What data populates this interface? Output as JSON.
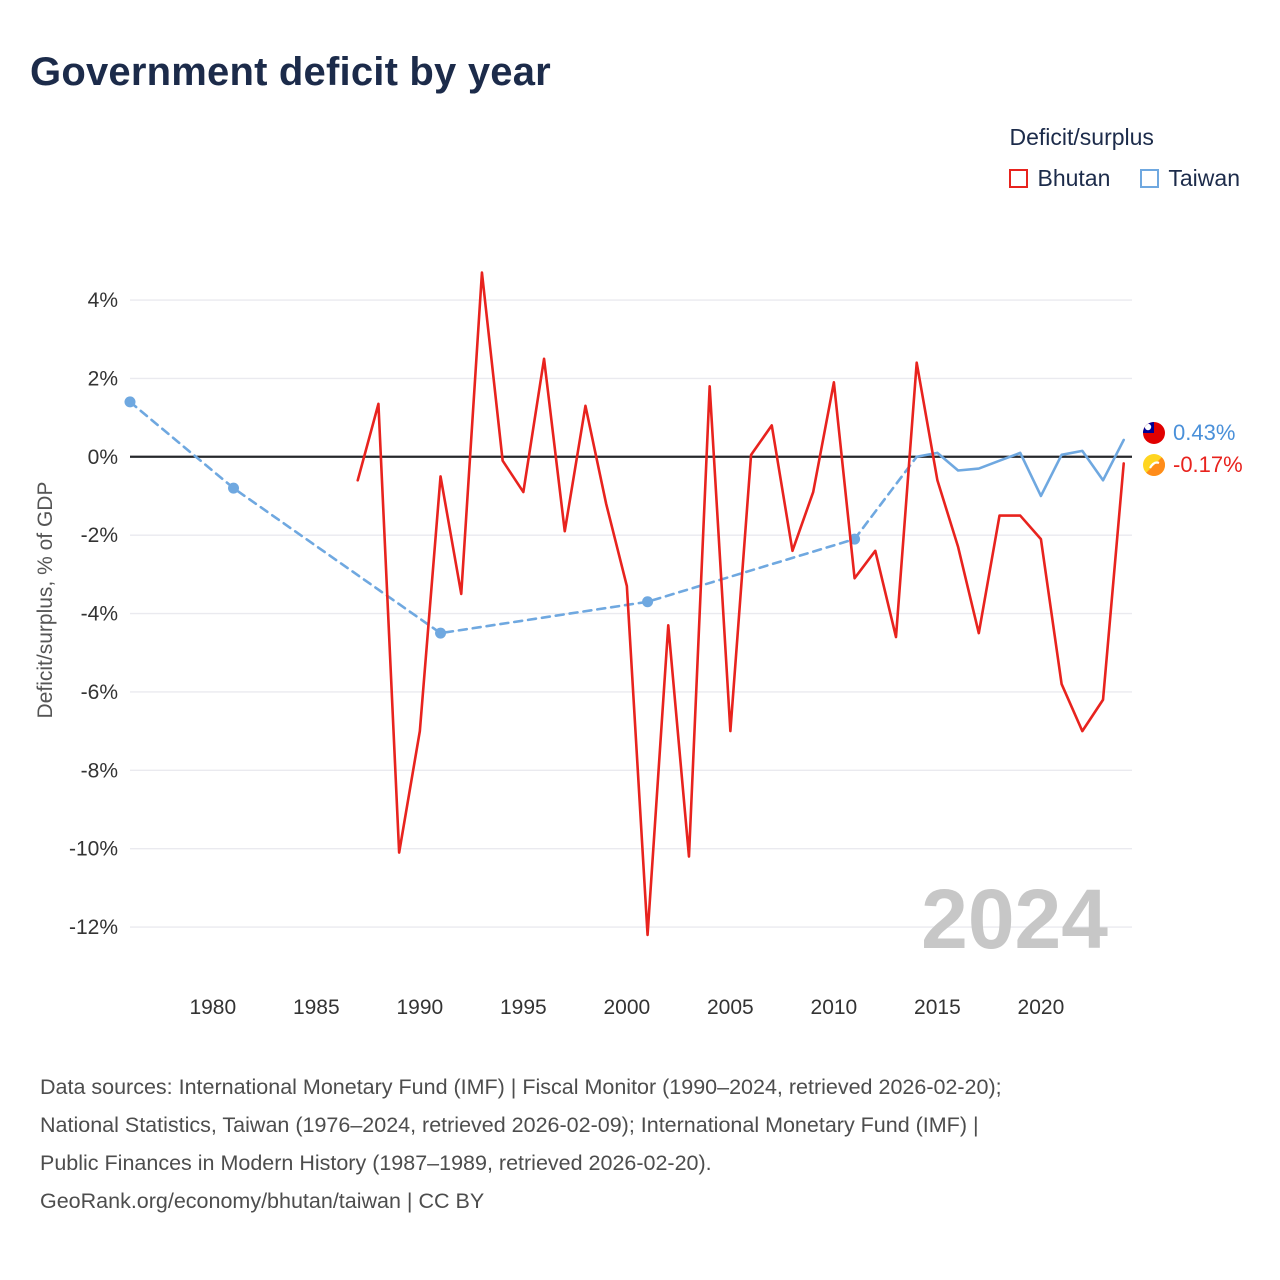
{
  "page": {
    "title": "Government deficit by year",
    "watermark": "2024"
  },
  "legend": {
    "title": "Deficit/surplus",
    "items": [
      {
        "label": "Bhutan",
        "color": "#e8231e"
      },
      {
        "label": "Taiwan",
        "color": "#6fa8e0"
      }
    ]
  },
  "axes": {
    "y_label": "Deficit/surplus, % of GDP"
  },
  "chart_data": {
    "type": "line",
    "title": "Government deficit by year",
    "xlabel": "",
    "ylabel": "Deficit/surplus, % of GDP",
    "xlim": [
      1976,
      2024.4
    ],
    "ylim": [
      -13.3,
      5.2
    ],
    "grid": true,
    "zero_line": true,
    "legend_position": "top-right",
    "x_ticks": [
      1980,
      1985,
      1990,
      1995,
      2000,
      2005,
      2010,
      2015,
      2020
    ],
    "y_ticks": [
      4,
      2,
      0,
      -2,
      -4,
      -6,
      -8,
      -10,
      -12
    ],
    "y_tick_suffix": "%",
    "series": [
      {
        "name": "Taiwan",
        "color": "#6fa8e0",
        "end_value_label": "0.43%",
        "segments": [
          {
            "style": "dashed",
            "markers": true,
            "x": [
              1976,
              1981,
              1991,
              2001,
              2011
            ],
            "y": [
              1.4,
              -0.8,
              -4.5,
              -3.7,
              -2.1
            ]
          },
          {
            "style": "dashed",
            "markers": false,
            "x": [
              2011,
              2014
            ],
            "y": [
              -2.1,
              0.0
            ]
          },
          {
            "style": "solid",
            "markers": false,
            "x": [
              2014,
              2015,
              2016,
              2017,
              2018,
              2019,
              2020,
              2021,
              2022,
              2023,
              2024
            ],
            "y": [
              0.0,
              0.1,
              -0.35,
              -0.3,
              -0.1,
              0.1,
              -1.0,
              0.05,
              0.15,
              -0.6,
              0.43
            ]
          }
        ]
      },
      {
        "name": "Bhutan",
        "color": "#e8231e",
        "end_value_label": "-0.17%",
        "segments": [
          {
            "style": "solid",
            "markers": false,
            "x": [
              1987,
              1988,
              1989,
              1990,
              1991,
              1992,
              1993,
              1994,
              1995,
              1996,
              1997,
              1998,
              1999,
              2000,
              2001,
              2002,
              2003,
              2004,
              2005,
              2006,
              2007,
              2008,
              2009,
              2010,
              2011,
              2012,
              2013,
              2014,
              2015,
              2016,
              2017,
              2018,
              2019,
              2020,
              2021,
              2022,
              2023,
              2024
            ],
            "y": [
              -0.6,
              1.35,
              -10.1,
              -7.0,
              -0.5,
              -3.5,
              4.7,
              -0.1,
              -0.9,
              2.5,
              -1.9,
              1.3,
              -1.2,
              -3.3,
              -12.2,
              -4.3,
              -10.2,
              1.8,
              -7.0,
              0.05,
              0.8,
              -2.4,
              -0.9,
              1.9,
              -3.1,
              -2.4,
              -4.6,
              2.4,
              -0.6,
              -2.3,
              -4.5,
              -1.5,
              -1.5,
              -2.1,
              -5.8,
              -7.0,
              -6.2,
              -0.17
            ]
          }
        ]
      }
    ]
  },
  "end_labels": {
    "taiwan": {
      "value": "0.43%",
      "color": "#4a90d9",
      "icon": "taiwan-flag"
    },
    "bhutan": {
      "value": "-0.17%",
      "color": "#e8231e",
      "icon": "bhutan-flag"
    }
  },
  "footer": {
    "lines": [
      "Data sources: International Monetary Fund (IMF) | Fiscal Monitor (1990–2024, retrieved 2026-02-20);",
      "National Statistics, Taiwan (1976–2024, retrieved 2026-02-09); International Monetary Fund (IMF) |",
      "Public Finances in Modern History (1987–1989, retrieved 2026-02-20).",
      "GeoRank.org/economy/bhutan/taiwan | CC BY"
    ]
  }
}
